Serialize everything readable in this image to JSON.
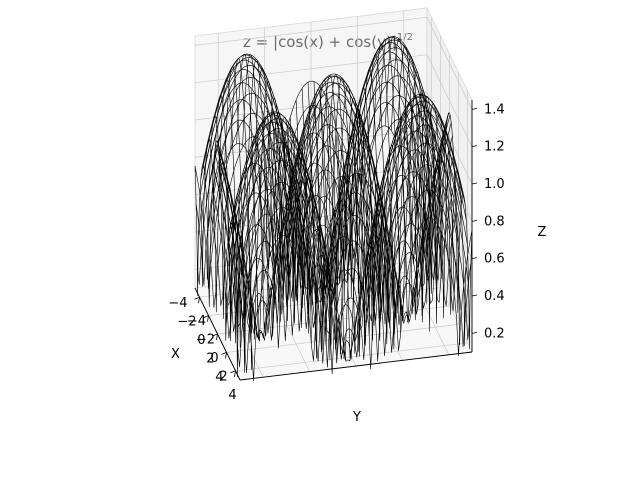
{
  "chart_data": {
    "type": "wireframe",
    "title": "z = |cos(x) + cos(y)|^{1/2}",
    "title_parts": {
      "base": "z = |cos(x) + cos(y)|",
      "exponent": "1/2"
    },
    "xlabel": "X",
    "ylabel": "Y",
    "zlabel": "Z",
    "xlim": [
      -5,
      5
    ],
    "ylim": [
      -5,
      5
    ],
    "zlim": [
      0.1,
      1.45
    ],
    "x_ticks": [
      -4,
      -2,
      0,
      2,
      4
    ],
    "x_tick_labels": [
      "−4",
      "−2",
      "0",
      "2",
      "4"
    ],
    "y_ticks": [
      -4,
      -2,
      0,
      2,
      4
    ],
    "y_tick_labels": [
      "−4",
      "−2",
      "0",
      "2",
      "4"
    ],
    "z_ticks": [
      0.2,
      0.4,
      0.6,
      0.8,
      1.0,
      1.2,
      1.4
    ],
    "z_tick_labels": [
      "0.2",
      "0.4",
      "0.6",
      "0.8",
      "1.0",
      "1.2",
      "1.4"
    ],
    "surface": {
      "function": "sqrt(abs(cos(x) + cos(y)))",
      "x_range": [
        -5,
        5
      ],
      "y_range": [
        -5,
        5
      ],
      "grid_lines": 40
    },
    "line_color": "#000000",
    "grid": true
  }
}
